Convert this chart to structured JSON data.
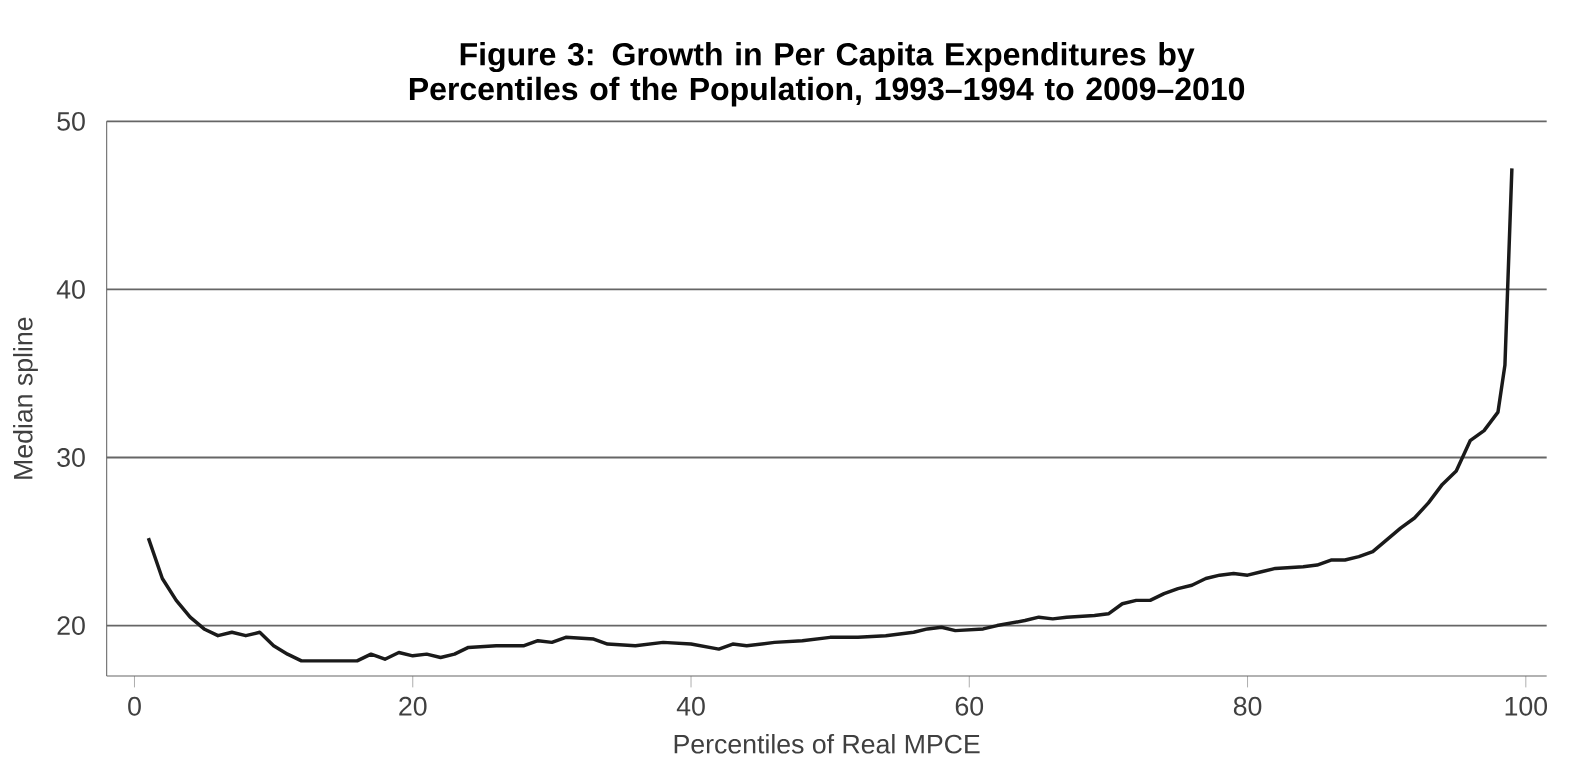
{
  "chart_data": {
    "type": "line",
    "title": "Figure 3: Growth in Per Capita Expenditures by Percentiles of the Population, 1993–1994 to 2009–2010",
    "xlabel": "Percentiles of Real MPCE",
    "ylabel": "Median spline",
    "xlim": [
      -2,
      101.5
    ],
    "ylim": [
      17,
      50
    ],
    "xticks": [
      0,
      20,
      40,
      60,
      80,
      100
    ],
    "yticks": [
      20,
      30,
      40,
      50
    ],
    "grid": "y",
    "marker": "none",
    "line_style": "solid",
    "series": [
      {
        "color": "#1a1a1a",
        "x": [
          1,
          2,
          3,
          4,
          5,
          6,
          7,
          8,
          9,
          10,
          11,
          12,
          14,
          16,
          17,
          18,
          19,
          20,
          21,
          22,
          23,
          24,
          26,
          28,
          29,
          30,
          31,
          33,
          34,
          36,
          38,
          40,
          42,
          43,
          44,
          46,
          48,
          50,
          52,
          54,
          56,
          57,
          58,
          59,
          61,
          62,
          64,
          65,
          66,
          67,
          69,
          70,
          71,
          72,
          73,
          74,
          75,
          76,
          77,
          78,
          79,
          80,
          81,
          82,
          84,
          85,
          86,
          87,
          88,
          89,
          90,
          91,
          92,
          93,
          94,
          95,
          96,
          97,
          98,
          98.5,
          99
        ],
        "values": [
          25.2,
          22.8,
          21.5,
          20.5,
          19.8,
          19.4,
          19.6,
          19.4,
          19.6,
          18.8,
          18.3,
          17.9,
          17.9,
          17.9,
          18.3,
          18.0,
          18.4,
          18.2,
          18.3,
          18.1,
          18.3,
          18.7,
          18.8,
          18.8,
          19.1,
          19.0,
          19.3,
          19.2,
          18.9,
          18.8,
          19.0,
          18.9,
          18.6,
          18.9,
          18.8,
          19.0,
          19.1,
          19.3,
          19.3,
          19.4,
          19.6,
          19.8,
          19.9,
          19.7,
          19.8,
          20.0,
          20.3,
          20.5,
          20.4,
          20.5,
          20.6,
          20.7,
          21.3,
          21.5,
          21.5,
          21.9,
          22.2,
          22.4,
          22.8,
          23.0,
          23.1,
          23.0,
          23.2,
          23.4,
          23.5,
          23.6,
          23.9,
          23.9,
          24.1,
          24.4,
          25.1,
          25.8,
          26.4,
          27.3,
          28.4,
          29.2,
          31.0,
          31.6,
          32.7,
          35.5,
          47.2
        ]
      }
    ]
  }
}
